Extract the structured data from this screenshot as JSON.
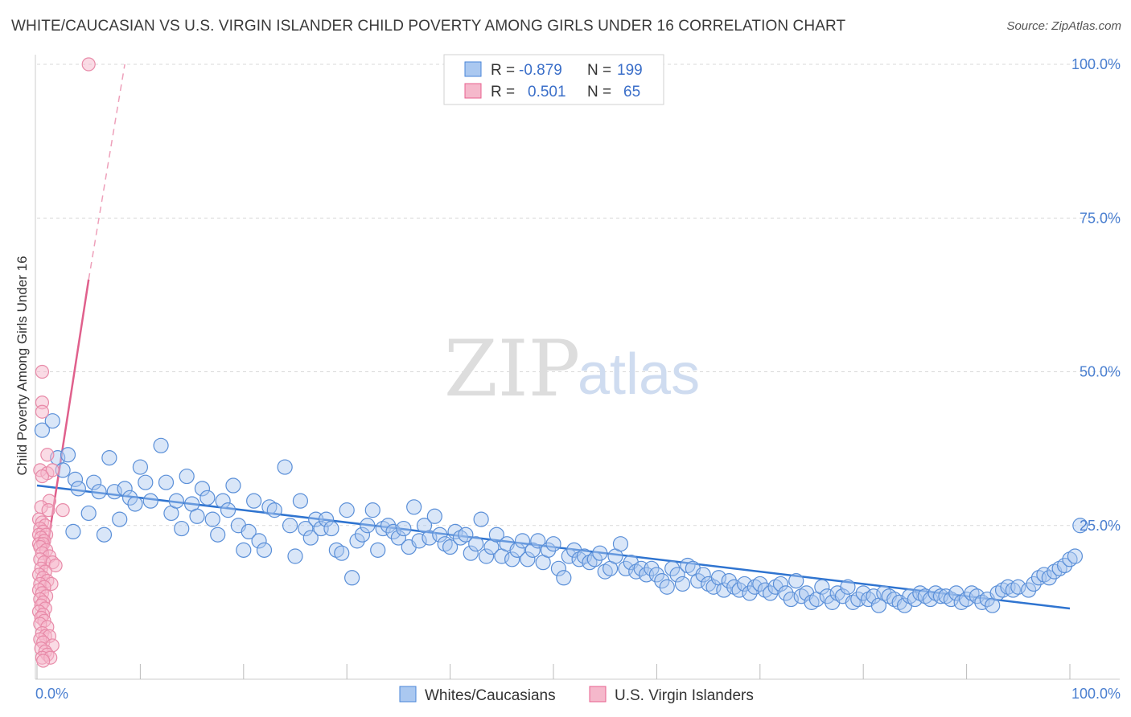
{
  "title": "WHITE/CAUCASIAN VS U.S. VIRGIN ISLANDER CHILD POVERTY AMONG GIRLS UNDER 16 CORRELATION CHART",
  "source": "Source: ZipAtlas.com",
  "watermark": {
    "zip": "ZIP",
    "atlas": "atlas"
  },
  "colors": {
    "blue": "#4a86d8",
    "blue_fill": "#aac8f0",
    "pink": "#e8608f",
    "pink_fill": "#f5b8cb",
    "grid": "#d9d9d9"
  },
  "chart_data": {
    "type": "scatter",
    "title": "WHITE/CAUCASIAN VS U.S. VIRGIN ISLANDER CHILD POVERTY AMONG GIRLS UNDER 16 CORRELATION CHART",
    "xlabel": "",
    "ylabel": "Child Poverty Among Girls Under 16",
    "xlim": [
      0,
      100
    ],
    "ylim": [
      0,
      100
    ],
    "x_tick_labels": [
      "0.0%",
      "100.0%"
    ],
    "y_tick_labels": [
      "25.0%",
      "50.0%",
      "75.0%",
      "100.0%"
    ],
    "y_ticks": [
      25,
      50,
      75,
      100
    ],
    "grid": true,
    "legend_placement": "top-center",
    "stats": [
      {
        "r_label": "R =",
        "r": "-0.879",
        "n_label": "N =",
        "n": "199"
      },
      {
        "r_label": "R =",
        "r": "0.501",
        "n_label": "N =",
        "n": "65"
      }
    ],
    "series": [
      {
        "name": "Whites/Caucasians",
        "color": "#4a86d8",
        "trend": {
          "x": [
            0,
            100
          ],
          "y": [
            31.5,
            11.5
          ]
        },
        "points": [
          [
            0.5,
            40.5
          ],
          [
            1.5,
            42
          ],
          [
            2,
            36
          ],
          [
            2.5,
            34
          ],
          [
            3,
            36.5
          ],
          [
            3.5,
            24
          ],
          [
            3.7,
            32.5
          ],
          [
            4,
            31
          ],
          [
            5,
            27
          ],
          [
            5.5,
            32
          ],
          [
            6,
            30.5
          ],
          [
            6.5,
            23.5
          ],
          [
            7,
            36
          ],
          [
            7.5,
            30.5
          ],
          [
            8,
            26
          ],
          [
            8.5,
            31
          ],
          [
            9,
            29.5
          ],
          [
            9.5,
            28.5
          ],
          [
            10,
            34.5
          ],
          [
            10.5,
            32
          ],
          [
            11,
            29
          ],
          [
            12,
            38
          ],
          [
            12.5,
            32
          ],
          [
            13,
            27
          ],
          [
            13.5,
            29
          ],
          [
            14,
            24.5
          ],
          [
            14.5,
            33
          ],
          [
            15,
            28.5
          ],
          [
            15.5,
            26.5
          ],
          [
            16,
            31
          ],
          [
            16.5,
            29.5
          ],
          [
            17,
            26
          ],
          [
            17.5,
            23.5
          ],
          [
            18,
            29
          ],
          [
            18.5,
            27.5
          ],
          [
            19,
            31.5
          ],
          [
            19.5,
            25
          ],
          [
            20,
            21
          ],
          [
            20.5,
            24
          ],
          [
            21,
            29
          ],
          [
            21.5,
            22.5
          ],
          [
            22,
            21
          ],
          [
            22.5,
            28
          ],
          [
            23,
            27.5
          ],
          [
            24,
            34.5
          ],
          [
            24.5,
            25
          ],
          [
            25,
            20
          ],
          [
            25.5,
            29
          ],
          [
            26,
            24.5
          ],
          [
            26.5,
            23
          ],
          [
            27,
            26
          ],
          [
            27.5,
            24.5
          ],
          [
            28,
            26
          ],
          [
            28.5,
            24.5
          ],
          [
            29,
            21
          ],
          [
            29.5,
            20.5
          ],
          [
            30,
            27.5
          ],
          [
            30.5,
            16.5
          ],
          [
            31,
            22.5
          ],
          [
            31.5,
            23.5
          ],
          [
            32,
            25
          ],
          [
            32.5,
            27.5
          ],
          [
            33,
            21
          ],
          [
            33.5,
            24.5
          ],
          [
            34,
            25
          ],
          [
            34.5,
            24
          ],
          [
            35,
            23
          ],
          [
            35.5,
            24.5
          ],
          [
            36,
            21.5
          ],
          [
            36.5,
            28
          ],
          [
            37,
            22.5
          ],
          [
            37.5,
            25
          ],
          [
            38,
            23
          ],
          [
            38.5,
            26.5
          ],
          [
            39,
            23.5
          ],
          [
            39.5,
            22
          ],
          [
            40,
            21.5
          ],
          [
            40.5,
            24
          ],
          [
            41,
            23
          ],
          [
            41.5,
            23.5
          ],
          [
            42,
            20.5
          ],
          [
            42.5,
            22
          ],
          [
            43,
            26
          ],
          [
            43.5,
            20
          ],
          [
            44,
            21.5
          ],
          [
            44.5,
            23.5
          ],
          [
            45,
            20
          ],
          [
            45.5,
            22
          ],
          [
            46,
            19.5
          ],
          [
            46.5,
            21
          ],
          [
            47,
            22.5
          ],
          [
            47.5,
            19.5
          ],
          [
            48,
            21
          ],
          [
            48.5,
            22.5
          ],
          [
            49,
            19
          ],
          [
            49.5,
            21
          ],
          [
            50,
            22
          ],
          [
            50.5,
            18
          ],
          [
            51,
            16.5
          ],
          [
            51.5,
            20
          ],
          [
            52,
            21
          ],
          [
            52.5,
            19.5
          ],
          [
            53,
            20
          ],
          [
            53.5,
            19
          ],
          [
            54,
            19.5
          ],
          [
            54.5,
            20.5
          ],
          [
            55,
            17.5
          ],
          [
            55.5,
            18
          ],
          [
            56,
            20
          ],
          [
            56.5,
            22
          ],
          [
            57,
            18
          ],
          [
            57.5,
            19
          ],
          [
            58,
            17.5
          ],
          [
            58.5,
            18
          ],
          [
            59,
            17
          ],
          [
            59.5,
            18
          ],
          [
            60,
            17
          ],
          [
            60.5,
            16
          ],
          [
            61,
            15
          ],
          [
            61.5,
            18
          ],
          [
            62,
            17
          ],
          [
            62.5,
            15.5
          ],
          [
            63,
            18.5
          ],
          [
            63.5,
            18
          ],
          [
            64,
            16
          ],
          [
            64.5,
            17
          ],
          [
            65,
            15.5
          ],
          [
            65.5,
            15
          ],
          [
            66,
            16.5
          ],
          [
            66.5,
            14.5
          ],
          [
            67,
            16
          ],
          [
            67.5,
            15
          ],
          [
            68,
            14.5
          ],
          [
            68.5,
            15.5
          ],
          [
            69,
            14
          ],
          [
            69.5,
            15
          ],
          [
            70,
            15.5
          ],
          [
            70.5,
            14.5
          ],
          [
            71,
            14
          ],
          [
            71.5,
            15
          ],
          [
            72,
            15.5
          ],
          [
            72.5,
            14
          ],
          [
            73,
            13
          ],
          [
            73.5,
            16
          ],
          [
            74,
            13.5
          ],
          [
            74.5,
            14
          ],
          [
            75,
            12.5
          ],
          [
            75.5,
            13
          ],
          [
            76,
            15
          ],
          [
            76.5,
            13.5
          ],
          [
            77,
            12.5
          ],
          [
            77.5,
            14
          ],
          [
            78,
            13.5
          ],
          [
            78.5,
            15
          ],
          [
            79,
            12.5
          ],
          [
            79.5,
            13
          ],
          [
            80,
            14
          ],
          [
            80.5,
            13
          ],
          [
            81,
            13.5
          ],
          [
            81.5,
            12
          ],
          [
            82,
            14
          ],
          [
            82.5,
            13.5
          ],
          [
            83,
            13
          ],
          [
            83.5,
            12.5
          ],
          [
            84,
            12
          ],
          [
            84.5,
            13.5
          ],
          [
            85,
            13
          ],
          [
            85.5,
            14
          ],
          [
            86,
            13.5
          ],
          [
            86.5,
            13
          ],
          [
            87,
            14
          ],
          [
            87.5,
            13.5
          ],
          [
            88,
            13.5
          ],
          [
            88.5,
            13
          ],
          [
            89,
            14
          ],
          [
            89.5,
            12.5
          ],
          [
            90,
            13
          ],
          [
            90.5,
            14
          ],
          [
            91,
            13.5
          ],
          [
            91.5,
            12.5
          ],
          [
            92,
            13
          ],
          [
            92.5,
            12
          ],
          [
            93,
            14
          ],
          [
            93.5,
            14.5
          ],
          [
            94,
            15
          ],
          [
            94.5,
            14.5
          ],
          [
            95,
            15
          ],
          [
            96,
            14.5
          ],
          [
            96.5,
            15.5
          ],
          [
            97,
            16.5
          ],
          [
            97.5,
            17
          ],
          [
            98,
            16.5
          ],
          [
            98.5,
            17.5
          ],
          [
            99,
            18
          ],
          [
            99.5,
            18.5
          ],
          [
            100,
            19.5
          ],
          [
            100.5,
            20
          ],
          [
            101,
            25
          ]
        ]
      },
      {
        "name": "U.S. Virgin Islanders",
        "color": "#e8608f",
        "trend": {
          "x": [
            0.5,
            5
          ],
          "y": [
            16,
            65
          ]
        },
        "trend_dashed": {
          "x": [
            5,
            8.5
          ],
          "y": [
            65,
            100
          ]
        },
        "points": [
          [
            5,
            100
          ],
          [
            0.5,
            50
          ],
          [
            0.5,
            45
          ],
          [
            0.5,
            43.5
          ],
          [
            1,
            36.5
          ],
          [
            0.3,
            34
          ],
          [
            1,
            33.5
          ],
          [
            1.5,
            34
          ],
          [
            0.5,
            33
          ],
          [
            1.2,
            29
          ],
          [
            0.4,
            28
          ],
          [
            1.1,
            27.5
          ],
          [
            2.5,
            27.5
          ],
          [
            0.2,
            26
          ],
          [
            0.5,
            25.5
          ],
          [
            0.8,
            25
          ],
          [
            0.3,
            24.5
          ],
          [
            0.6,
            24
          ],
          [
            0.2,
            23.5
          ],
          [
            0.9,
            23.5
          ],
          [
            0.4,
            23
          ],
          [
            0.7,
            22.5
          ],
          [
            0.2,
            22
          ],
          [
            0.6,
            22
          ],
          [
            0.3,
            21.5
          ],
          [
            0.9,
            21
          ],
          [
            0.5,
            20.5
          ],
          [
            1.2,
            20
          ],
          [
            0.3,
            19.5
          ],
          [
            0.7,
            19
          ],
          [
            1.5,
            19
          ],
          [
            1.8,
            18.5
          ],
          [
            0.4,
            18
          ],
          [
            0.8,
            17.5
          ],
          [
            0.2,
            17
          ],
          [
            0.6,
            16.5
          ],
          [
            1,
            16
          ],
          [
            0.3,
            15.5
          ],
          [
            1.4,
            15.5
          ],
          [
            0.7,
            15
          ],
          [
            0.2,
            14.5
          ],
          [
            0.5,
            14
          ],
          [
            0.9,
            13.5
          ],
          [
            0.3,
            13
          ],
          [
            0.6,
            12.5
          ],
          [
            0.4,
            12
          ],
          [
            0.8,
            11.5
          ],
          [
            0.2,
            11
          ],
          [
            0.6,
            10.5
          ],
          [
            0.4,
            10
          ],
          [
            0.7,
            9.5
          ],
          [
            0.3,
            9
          ],
          [
            1,
            8.5
          ],
          [
            0.5,
            7.5
          ],
          [
            0.8,
            7
          ],
          [
            1.2,
            7
          ],
          [
            0.3,
            6.5
          ],
          [
            0.6,
            6
          ],
          [
            1.5,
            5.5
          ],
          [
            0.4,
            5
          ],
          [
            0.8,
            4.5
          ],
          [
            1,
            4
          ],
          [
            0.5,
            3.5
          ],
          [
            1.3,
            3.5
          ],
          [
            0.6,
            3
          ]
        ]
      }
    ]
  }
}
